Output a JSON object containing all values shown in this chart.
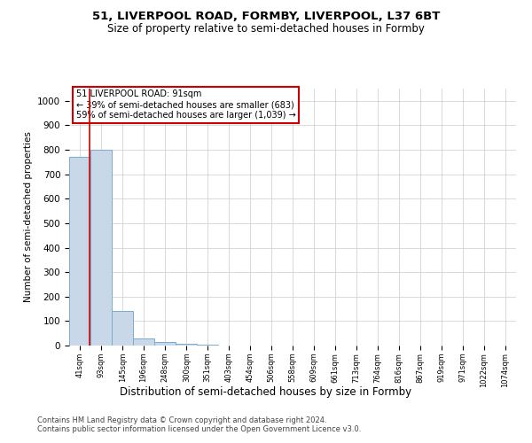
{
  "title": "51, LIVERPOOL ROAD, FORMBY, LIVERPOOL, L37 6BT",
  "subtitle": "Size of property relative to semi-detached houses in Formby",
  "xlabel": "Distribution of semi-detached houses by size in Formby",
  "ylabel": "Number of semi-detached properties",
  "footnote1": "Contains HM Land Registry data © Crown copyright and database right 2024.",
  "footnote2": "Contains public sector information licensed under the Open Government Licence v3.0.",
  "bin_labels": [
    "41sqm",
    "93sqm",
    "145sqm",
    "196sqm",
    "248sqm",
    "300sqm",
    "351sqm",
    "403sqm",
    "454sqm",
    "506sqm",
    "558sqm",
    "609sqm",
    "661sqm",
    "713sqm",
    "764sqm",
    "816sqm",
    "867sqm",
    "919sqm",
    "971sqm",
    "1022sqm",
    "1074sqm"
  ],
  "bar_heights": [
    770,
    800,
    140,
    30,
    13,
    7,
    2,
    1,
    0,
    0,
    0,
    0,
    0,
    0,
    0,
    0,
    0,
    0,
    0,
    0,
    0
  ],
  "bar_color": "#c8d8e8",
  "bar_edge_color": "#7aacce",
  "grid_color": "#cccccc",
  "annotation_line1": "51 LIVERPOOL ROAD: 91sqm",
  "annotation_line2": "← 39% of semi-detached houses are smaller (683)",
  "annotation_line3": "59% of semi-detached houses are larger (1,039) →",
  "annotation_box_color": "#ffffff",
  "annotation_border_color": "#cc0000",
  "red_line_color": "#cc0000",
  "bin_edges": [
    41,
    93,
    145,
    196,
    248,
    300,
    351,
    403,
    454,
    506,
    558,
    609,
    661,
    713,
    764,
    816,
    867,
    919,
    971,
    1022,
    1074
  ],
  "bin_width": 52,
  "red_line_x": 91,
  "ylim": [
    0,
    1050
  ],
  "yticks": [
    0,
    100,
    200,
    300,
    400,
    500,
    600,
    700,
    800,
    900,
    1000
  ],
  "background_color": "#ffffff",
  "title_fontsize": 9.5,
  "subtitle_fontsize": 8.5
}
